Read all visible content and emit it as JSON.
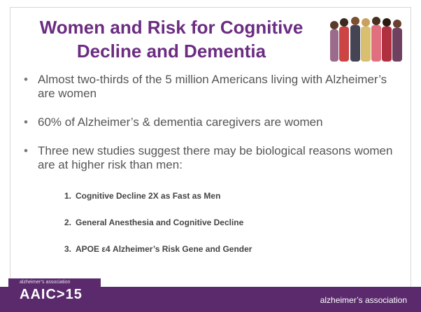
{
  "title_lines": [
    "Women and Risk for Cognitive",
    "Decline and Dementia"
  ],
  "bullets": [
    "Almost two-thirds of the 5 million Americans living with Alzheimer’s are women",
    "60% of Alzheimer’s & dementia caregivers are women",
    "Three new studies suggest there may be biological reasons women are at higher risk than men:"
  ],
  "studies": [
    {
      "number": "1.",
      "text": "Cognitive Decline 2X as Fast as Men"
    },
    {
      "number": "2.",
      "text": "General Anesthesia and Cognitive Decline"
    },
    {
      "number": "3.",
      "text": "APOE ε4 Alzheimer’s Risk Gene and Gender"
    }
  ],
  "footer": {
    "logo_small": "alzheimer’s association",
    "logo": "AAIC>15",
    "association": "alzheimer’s association"
  }
}
